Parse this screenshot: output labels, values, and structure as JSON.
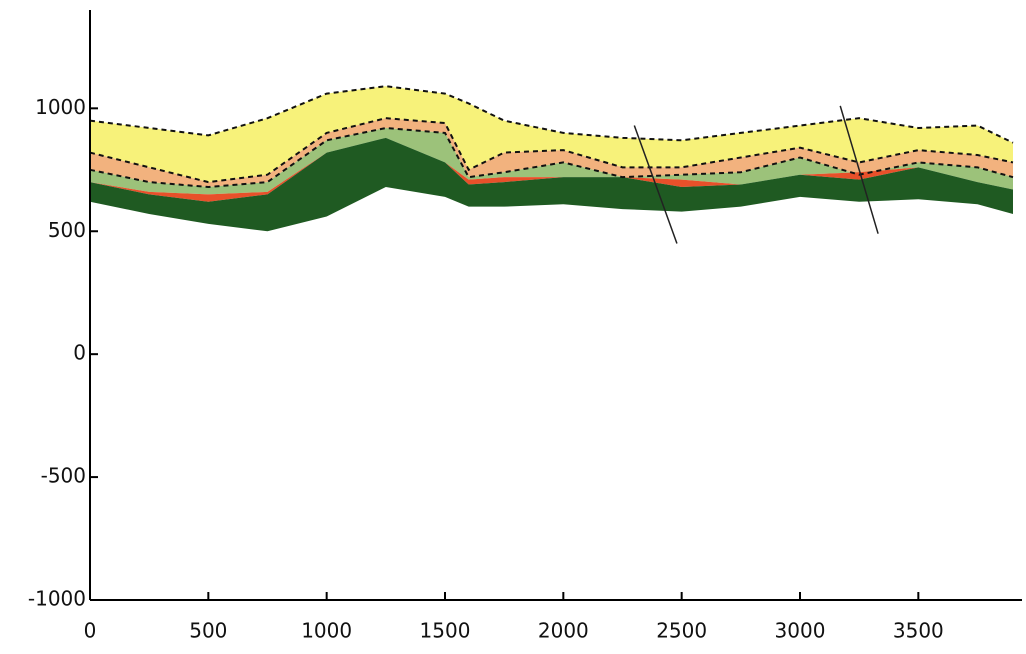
{
  "chart_data": {
    "type": "layers",
    "x": [
      0,
      250,
      500,
      750,
      1000,
      1250,
      1500,
      1600,
      1750,
      2000,
      2250,
      2500,
      2750,
      3000,
      3250,
      3500,
      3750,
      3900
    ],
    "series": [
      {
        "color": "#f7f27a",
        "dashed": true,
        "values": [
          950,
          920,
          890,
          960,
          1060,
          1090,
          1060,
          1020,
          950,
          900,
          880,
          870,
          900,
          930,
          960,
          920,
          930,
          860
        ]
      },
      {
        "color": "#f2b27e",
        "dashed": true,
        "values": [
          820,
          760,
          700,
          730,
          900,
          960,
          940,
          750,
          820,
          830,
          760,
          760,
          800,
          840,
          780,
          830,
          810,
          780
        ]
      },
      {
        "color": "#9cc27a",
        "dashed": true,
        "values": [
          750,
          700,
          680,
          700,
          870,
          920,
          900,
          720,
          740,
          780,
          720,
          730,
          740,
          800,
          730,
          780,
          760,
          720
        ]
      },
      {
        "color": "#e8502a",
        "dashed": false,
        "values": [
          700,
          660,
          650,
          660,
          820,
          880,
          780,
          710,
          720,
          720,
          720,
          710,
          690,
          730,
          740,
          760,
          700,
          670
        ]
      },
      {
        "color": "#1f5a22",
        "dashed": false,
        "values": [
          700,
          650,
          620,
          650,
          820,
          880,
          780,
          690,
          700,
          720,
          720,
          680,
          690,
          730,
          710,
          760,
          700,
          670
        ]
      }
    ],
    "base": [
      620,
      570,
      530,
      500,
      560,
      680,
      640,
      600,
      600,
      610,
      590,
      580,
      600,
      640,
      620,
      630,
      610,
      570
    ],
    "faults": [
      {
        "x": [
          2300,
          2480
        ],
        "y": [
          930,
          450
        ]
      },
      {
        "x": [
          3170,
          3330
        ],
        "y": [
          1010,
          490
        ]
      }
    ],
    "xlim": [
      0,
      3900
    ],
    "ylim": [
      -1000,
      1400
    ],
    "xticks": [
      0,
      500,
      1000,
      1500,
      2000,
      2500,
      3000,
      3500
    ],
    "yticks": [
      1000,
      500,
      0,
      -500,
      -1000
    ]
  }
}
